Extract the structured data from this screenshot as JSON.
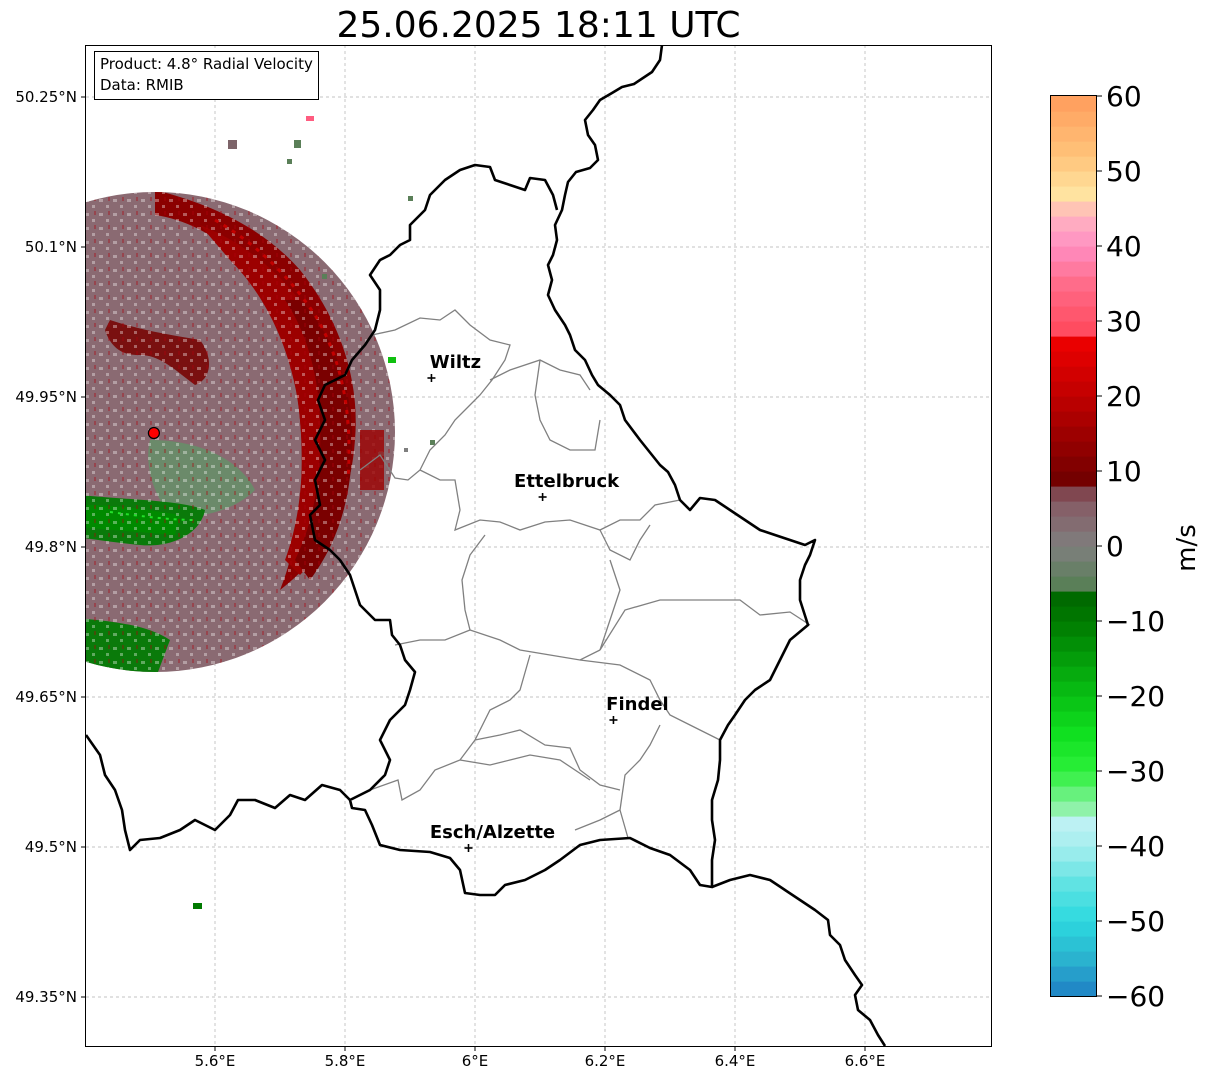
{
  "title": "25.06.2025 18:11 UTC",
  "info_box": {
    "product": "Product: 4.8° Radial Velocity",
    "source": "Data: RMIB"
  },
  "map": {
    "lon_range": [
      5.4,
      6.8
    ],
    "lat_range": [
      49.3,
      50.3
    ],
    "x_ticks": [
      {
        "value": 5.6,
        "label": "5.6°E"
      },
      {
        "value": 5.8,
        "label": "5.8°E"
      },
      {
        "value": 6.0,
        "label": "6°E"
      },
      {
        "value": 6.2,
        "label": "6.2°E"
      },
      {
        "value": 6.4,
        "label": "6.4°E"
      },
      {
        "value": 6.6,
        "label": "6.6°E"
      }
    ],
    "y_ticks": [
      {
        "value": 49.35,
        "label": "49.35°N"
      },
      {
        "value": 49.5,
        "label": "49.5°N"
      },
      {
        "value": 49.65,
        "label": "49.65°N"
      },
      {
        "value": 49.8,
        "label": "49.8°N"
      },
      {
        "value": 49.95,
        "label": "49.95°N"
      },
      {
        "value": 50.1,
        "label": "50.1°N"
      },
      {
        "value": 50.25,
        "label": "50.25°N"
      }
    ],
    "gridlines": true,
    "radar_site": {
      "lon": 5.506,
      "lat": 49.914
    },
    "cities": [
      {
        "name": "Wiltz",
        "lon": 5.933,
        "lat": 49.969
      },
      {
        "name": "Ettelbruck",
        "lon": 6.104,
        "lat": 49.85
      },
      {
        "name": "Findel",
        "lon": 6.213,
        "lat": 49.627
      },
      {
        "name": "Esch/Alzette",
        "lon": 5.99,
        "lat": 49.499
      }
    ]
  },
  "colorbar": {
    "label": "m/s",
    "min": -60,
    "max": 60,
    "ticks": [
      {
        "value": 60,
        "label": "60"
      },
      {
        "value": 50,
        "label": "50"
      },
      {
        "value": 40,
        "label": "40"
      },
      {
        "value": 30,
        "label": "30"
      },
      {
        "value": 20,
        "label": "20"
      },
      {
        "value": 10,
        "label": "10"
      },
      {
        "value": 0,
        "label": "0"
      },
      {
        "value": -10,
        "label": "−10"
      },
      {
        "value": -20,
        "label": "−20"
      },
      {
        "value": -30,
        "label": "−30"
      },
      {
        "value": -40,
        "label": "−40"
      },
      {
        "value": -50,
        "label": "−50"
      },
      {
        "value": -60,
        "label": "−60"
      }
    ],
    "stops": [
      {
        "value": -60,
        "color": "#1f7fc4"
      },
      {
        "value": -55,
        "color": "#2ab3cf"
      },
      {
        "value": -50,
        "color": "#2cd9df"
      },
      {
        "value": -45,
        "color": "#60e3e3"
      },
      {
        "value": -40,
        "color": "#a6eeee"
      },
      {
        "value": -36,
        "color": "#c3f2f4"
      },
      {
        "value": -35,
        "color": "#8ff2a9"
      },
      {
        "value": -30,
        "color": "#2cf03a"
      },
      {
        "value": -25,
        "color": "#10e020"
      },
      {
        "value": -20,
        "color": "#08c014"
      },
      {
        "value": -10,
        "color": "#007a00"
      },
      {
        "value": -6,
        "color": "#006400"
      },
      {
        "value": -5,
        "color": "#5a7f58"
      },
      {
        "value": 0,
        "color": "#7f7f7f"
      },
      {
        "value": 5,
        "color": "#856068"
      },
      {
        "value": 8,
        "color": "#7d3a44"
      },
      {
        "value": 9,
        "color": "#740000"
      },
      {
        "value": 20,
        "color": "#c00000"
      },
      {
        "value": 28,
        "color": "#f00000"
      },
      {
        "value": 29,
        "color": "#ff4c60"
      },
      {
        "value": 35,
        "color": "#ff6c8a"
      },
      {
        "value": 40,
        "color": "#ff8ec2"
      },
      {
        "value": 44,
        "color": "#ffb4c0"
      },
      {
        "value": 47,
        "color": "#ffe3a0"
      },
      {
        "value": 52,
        "color": "#ffc47a"
      },
      {
        "value": 60,
        "color": "#ff9c5c"
      }
    ]
  },
  "colors": {
    "border": "#000000",
    "canton_lines": "#808080",
    "grid": "#b0b0b0",
    "radar_site": "#ff0000"
  }
}
